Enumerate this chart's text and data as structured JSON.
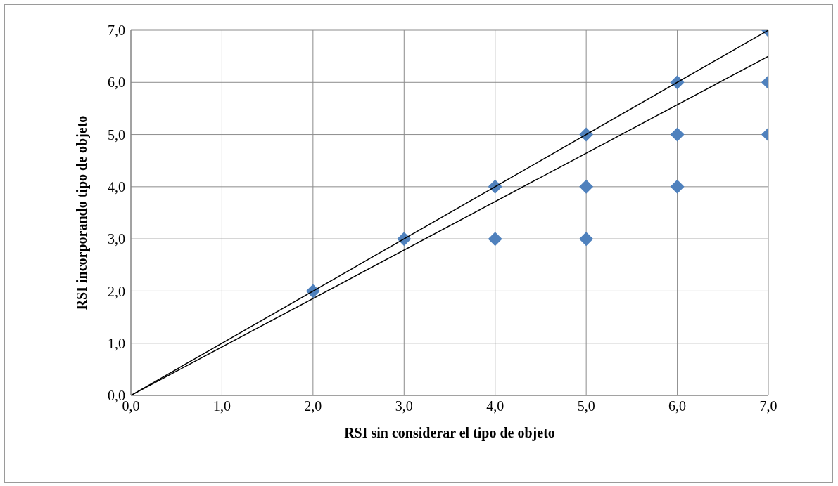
{
  "chart_data": {
    "type": "scatter",
    "xlabel": "RSI sin considerar el tipo de objeto",
    "ylabel": "RSI incorporando tipo de objeto",
    "xlim": [
      0,
      7
    ],
    "ylim": [
      0,
      7
    ],
    "xticks": [
      {
        "value": 0,
        "label": "0,0"
      },
      {
        "value": 1,
        "label": "1,0"
      },
      {
        "value": 2,
        "label": "2,0"
      },
      {
        "value": 3,
        "label": "3,0"
      },
      {
        "value": 4,
        "label": "4,0"
      },
      {
        "value": 5,
        "label": "5,0"
      },
      {
        "value": 6,
        "label": "6,0"
      },
      {
        "value": 7,
        "label": "7,0"
      }
    ],
    "yticks": [
      {
        "value": 0,
        "label": "0,0"
      },
      {
        "value": 1,
        "label": "1,0"
      },
      {
        "value": 2,
        "label": "2,0"
      },
      {
        "value": 3,
        "label": "3,0"
      },
      {
        "value": 4,
        "label": "4,0"
      },
      {
        "value": 5,
        "label": "5,0"
      },
      {
        "value": 6,
        "label": "6,0"
      },
      {
        "value": 7,
        "label": "7,0"
      }
    ],
    "grid": true,
    "series": [
      {
        "marker": "diamond",
        "color": "#4f81bd",
        "x": [
          2,
          3,
          4,
          4,
          5,
          5,
          5,
          6,
          6,
          6,
          7,
          7,
          7
        ],
        "values": [
          2,
          3,
          4,
          3,
          5,
          4,
          3,
          6,
          5,
          4,
          7,
          6,
          5
        ]
      },
      {
        "type": "line",
        "marker": "none",
        "color": "#000000",
        "x": [
          0,
          7
        ],
        "values": [
          0,
          7
        ]
      },
      {
        "type": "line",
        "marker": "none",
        "color": "#000000",
        "x": [
          0,
          7
        ],
        "values": [
          0,
          6.5
        ]
      }
    ]
  }
}
